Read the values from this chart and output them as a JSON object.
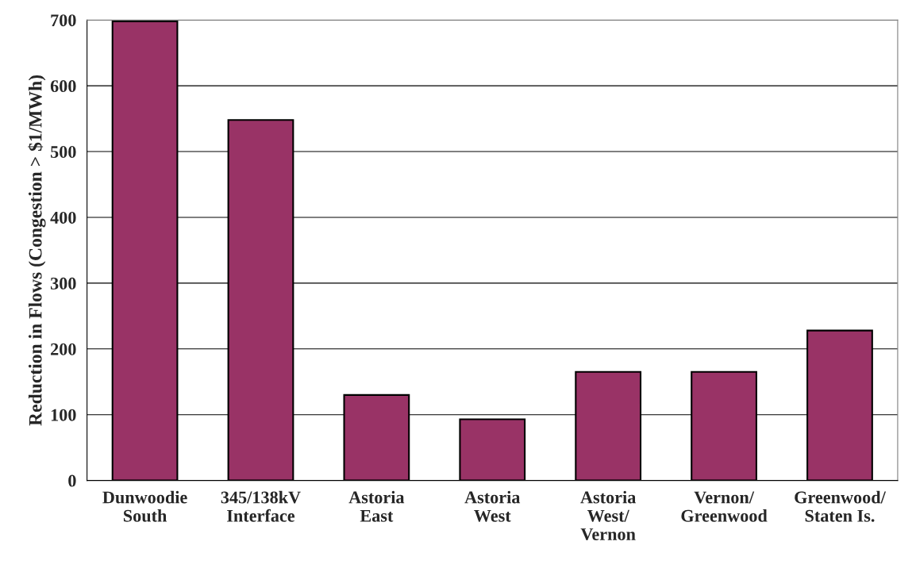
{
  "chart_data": {
    "type": "bar",
    "ylabel": "Reduction in Flows (Congestion > $1/MWh)",
    "categories": [
      "Dunwoodie\nSouth",
      "345/138kV\nInterface",
      "Astoria\nEast",
      "Astoria\nWest",
      "Astoria\nWest/\nVernon",
      "Vernon/\nGreenwood",
      "Greenwood/\nStaten Is."
    ],
    "values": [
      698,
      548,
      130,
      93,
      165,
      165,
      228
    ],
    "color": "#993366",
    "ylim": [
      0,
      700
    ],
    "yticks": [
      0,
      100,
      200,
      300,
      400,
      500,
      600,
      700
    ],
    "grid": "y"
  }
}
